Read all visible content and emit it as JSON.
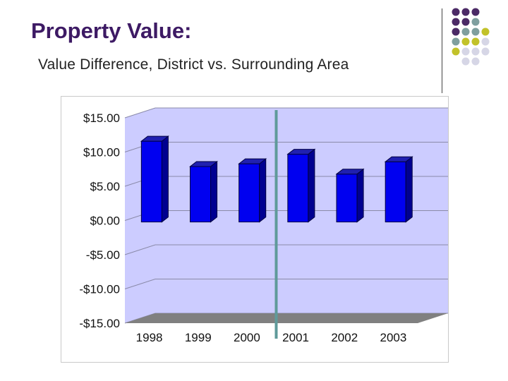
{
  "slide": {
    "title": "Property Value:",
    "subtitle": "Value Difference, District vs. Surrounding Area"
  },
  "decoration": {
    "dot_colors": [
      "#4b2a66",
      "#7f9f9f",
      "#c2c22a",
      "#d6d6e6"
    ]
  },
  "chart_data": {
    "type": "bar",
    "categories": [
      "1998",
      "1999",
      "2000",
      "2001",
      "2002",
      "2003"
    ],
    "values": [
      11.8,
      8.1,
      8.5,
      9.9,
      7.0,
      8.8
    ],
    "ylim": [
      -15,
      15
    ],
    "yticks": [
      15,
      10,
      5,
      0,
      -5,
      -10,
      -15
    ],
    "ytick_labels": [
      "$15.00",
      "$10.00",
      "$5.00",
      "$0.00",
      "-$5.00",
      "-$10.00",
      "-$15.00"
    ],
    "title": "",
    "xlabel": "",
    "ylabel": "",
    "grid": true,
    "style": "3d",
    "colors": {
      "bar_front": "#0000f0",
      "bar_side": "#000090",
      "bar_top": "#2020b0",
      "plot_wall": "#ccccff",
      "floor": "#808080",
      "marker_line": "#5f9a9a"
    },
    "marker_between": [
      "2000",
      "2001"
    ]
  }
}
